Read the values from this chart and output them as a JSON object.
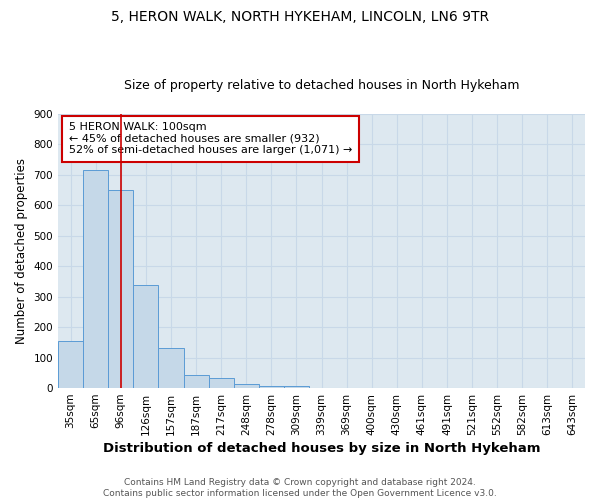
{
  "title1": "5, HERON WALK, NORTH HYKEHAM, LINCOLN, LN6 9TR",
  "title2": "Size of property relative to detached houses in North Hykeham",
  "xlabel": "Distribution of detached houses by size in North Hykeham",
  "ylabel": "Number of detached properties",
  "categories": [
    "35sqm",
    "65sqm",
    "96sqm",
    "126sqm",
    "157sqm",
    "187sqm",
    "217sqm",
    "248sqm",
    "278sqm",
    "309sqm",
    "339sqm",
    "369sqm",
    "400sqm",
    "430sqm",
    "461sqm",
    "491sqm",
    "521sqm",
    "552sqm",
    "582sqm",
    "613sqm",
    "643sqm"
  ],
  "values": [
    153,
    715,
    650,
    340,
    130,
    42,
    33,
    13,
    8,
    7,
    0,
    0,
    0,
    0,
    0,
    0,
    0,
    0,
    0,
    0,
    0
  ],
  "bar_color": "#c5d8e8",
  "bar_edge_color": "#5b9bd5",
  "property_line_x": 2,
  "property_line_color": "#cc0000",
  "annotation_text": "5 HERON WALK: 100sqm\n← 45% of detached houses are smaller (932)\n52% of semi-detached houses are larger (1,071) →",
  "annotation_box_color": "#ffffff",
  "annotation_box_edge_color": "#cc0000",
  "ylim": [
    0,
    900
  ],
  "yticks": [
    0,
    100,
    200,
    300,
    400,
    500,
    600,
    700,
    800,
    900
  ],
  "footer1": "Contains HM Land Registry data © Crown copyright and database right 2024.",
  "footer2": "Contains public sector information licensed under the Open Government Licence v3.0.",
  "bg_color": "#ffffff",
  "grid_color": "#c8d8e8",
  "title1_fontsize": 10,
  "title2_fontsize": 9,
  "xlabel_fontsize": 9.5,
  "ylabel_fontsize": 8.5,
  "tick_fontsize": 7.5,
  "annotation_fontsize": 8,
  "footer_fontsize": 6.5
}
